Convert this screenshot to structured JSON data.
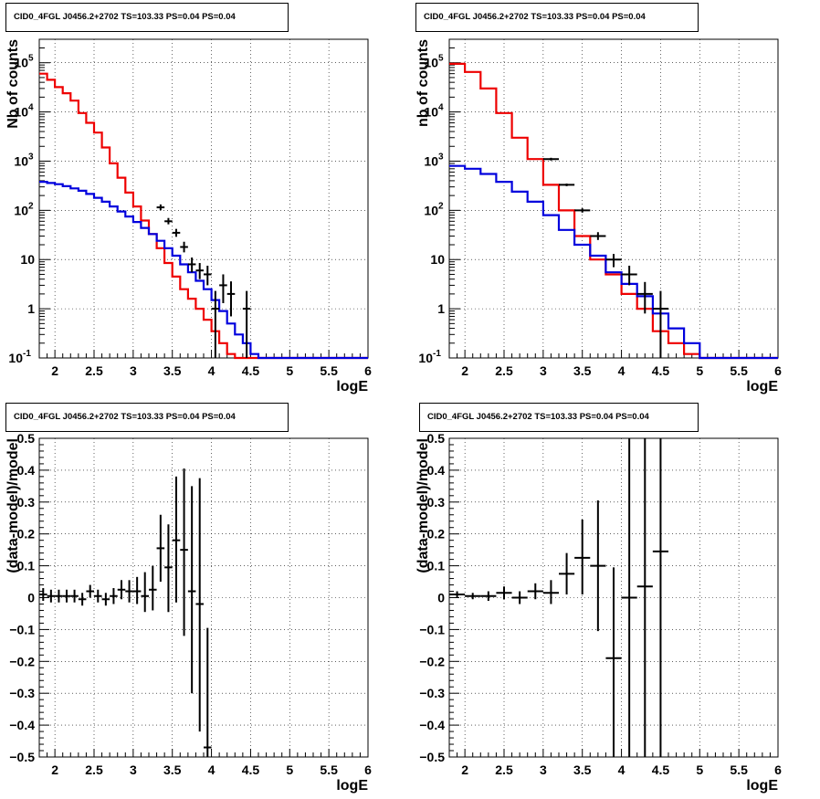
{
  "chart_data": [
    {
      "type": "line",
      "title": "CID0_4FGL J0456.2+2702 TS=103.33 PS=0.04 PS=0.04",
      "xlabel": "logE",
      "ylabel": "Nb of counts",
      "yscale": "log",
      "xlim": [
        1.8,
        6.0
      ],
      "ylim": [
        0.1,
        300000
      ],
      "x_ticks": [
        "2",
        "2.5",
        "3",
        "3.5",
        "4",
        "4.5",
        "5",
        "5.5",
        "6"
      ],
      "y_ticks": [
        "10^-1",
        "1",
        "10",
        "10^2",
        "10^3",
        "10^4",
        "10^5"
      ],
      "grid": true,
      "bin_edges": [
        1.8,
        1.9,
        2.0,
        2.1,
        2.2,
        2.3,
        2.4,
        2.5,
        2.6,
        2.7,
        2.8,
        2.9,
        3.0,
        3.1,
        3.2,
        3.3,
        3.4,
        3.5,
        3.6,
        3.7,
        3.8,
        3.9,
        4.0,
        4.1,
        4.2,
        4.3,
        4.4,
        4.5,
        4.6,
        4.7,
        4.8,
        4.9,
        5.0,
        5.1,
        5.2,
        5.3,
        5.4,
        5.5,
        5.6,
        5.7,
        5.8,
        5.9,
        6.0
      ],
      "series": [
        {
          "color": "#ee0000",
          "values": [
            60000,
            45000,
            32000,
            24000,
            17000,
            9500,
            6000,
            3800,
            1900,
            900,
            460,
            230,
            120,
            62,
            33,
            17,
            8.5,
            4.5,
            2.5,
            1.6,
            1.0,
            0.6,
            0.35,
            0.2,
            0.12,
            0.1,
            0.1,
            0.1,
            0.1,
            0.1,
            0.1,
            0.1,
            0.1,
            0.1,
            0.1,
            0.1,
            0.1,
            0.1,
            0.1,
            0.1,
            0.1,
            0.1
          ]
        },
        {
          "color": "#0000dd",
          "values": [
            380,
            360,
            340,
            310,
            280,
            250,
            215,
            180,
            150,
            120,
            95,
            75,
            58,
            44,
            33,
            24,
            17,
            12,
            8,
            5.5,
            3.7,
            2.5,
            1.5,
            0.9,
            0.5,
            0.3,
            0.2,
            0.12,
            0.1,
            0.1,
            0.1,
            0.1,
            0.1,
            0.1,
            0.1,
            0.1,
            0.1,
            0.1,
            0.1,
            0.1,
            0.1,
            0.1
          ]
        }
      ],
      "data_points": [
        {
          "x": 3.35,
          "y": 115,
          "xerr": 0.05,
          "ylow": 100,
          "yhigh": 132
        },
        {
          "x": 3.45,
          "y": 60,
          "xerr": 0.05,
          "ylow": 52,
          "yhigh": 70
        },
        {
          "x": 3.55,
          "y": 35,
          "xerr": 0.05,
          "ylow": 29,
          "yhigh": 42
        },
        {
          "x": 3.65,
          "y": 18,
          "xerr": 0.05,
          "ylow": 14,
          "yhigh": 23
        },
        {
          "x": 3.75,
          "y": 8,
          "xerr": 0.05,
          "ylow": 5.5,
          "yhigh": 11
        },
        {
          "x": 3.85,
          "y": 6,
          "xerr": 0.05,
          "ylow": 4,
          "yhigh": 8.5
        },
        {
          "x": 3.95,
          "y": 5,
          "xerr": 0.05,
          "ylow": 3,
          "yhigh": 7.5
        },
        {
          "x": 4.05,
          "y": 1,
          "xerr": 0.05,
          "ylow": 0.1,
          "yhigh": 2.3
        },
        {
          "x": 4.15,
          "y": 3,
          "xerr": 0.05,
          "ylow": 1.3,
          "yhigh": 5
        },
        {
          "x": 4.25,
          "y": 2,
          "xerr": 0.05,
          "ylow": 0.7,
          "yhigh": 3.6
        },
        {
          "x": 4.45,
          "y": 1,
          "xerr": 0.05,
          "ylow": 0.1,
          "yhigh": 2.3
        }
      ]
    },
    {
      "type": "line",
      "title": "CID0_4FGL J0456.2+2702 TS=103.33 PS=0.04 PS=0.04",
      "xlabel": "logE",
      "ylabel": "nb of counts",
      "yscale": "log",
      "xlim": [
        1.8,
        6.0
      ],
      "ylim": [
        0.1,
        300000
      ],
      "x_ticks": [
        "2",
        "2.5",
        "3",
        "3.5",
        "4",
        "4.5",
        "5",
        "5.5",
        "6"
      ],
      "y_ticks": [
        "10^-1",
        "1",
        "10",
        "10^2",
        "10^3",
        "10^4",
        "10^5"
      ],
      "grid": true,
      "bin_edges": [
        1.8,
        2.0,
        2.2,
        2.4,
        2.6,
        2.8,
        3.0,
        3.2,
        3.4,
        3.6,
        3.8,
        4.0,
        4.2,
        4.4,
        4.6,
        4.8,
        5.0,
        5.2,
        5.4,
        5.6,
        5.8,
        6.0
      ],
      "series": [
        {
          "color": "#ee0000",
          "values": [
            95000,
            65000,
            30000,
            9500,
            3000,
            1100,
            330,
            100,
            30,
            10,
            5,
            2,
            1,
            0.35,
            0.2,
            0.12,
            0.1,
            0.1,
            0.1,
            0.1,
            0.1
          ]
        },
        {
          "color": "#0000dd",
          "values": [
            800,
            700,
            550,
            380,
            240,
            150,
            80,
            40,
            20,
            12,
            5.5,
            3.2,
            1.8,
            0.8,
            0.4,
            0.2,
            0.1,
            0.1,
            0.1,
            0.1,
            0.1
          ]
        }
      ],
      "data_points": [
        {
          "x": 3.1,
          "y": 1100,
          "xerr": 0.1,
          "ylow": 1030,
          "yhigh": 1170
        },
        {
          "x": 3.3,
          "y": 330,
          "xerr": 0.1,
          "ylow": 310,
          "yhigh": 350
        },
        {
          "x": 3.5,
          "y": 100,
          "xerr": 0.1,
          "ylow": 90,
          "yhigh": 110
        },
        {
          "x": 3.7,
          "y": 30,
          "xerr": 0.1,
          "ylow": 25,
          "yhigh": 36
        },
        {
          "x": 3.9,
          "y": 10,
          "xerr": 0.1,
          "ylow": 7,
          "yhigh": 13
        },
        {
          "x": 4.1,
          "y": 5,
          "xerr": 0.1,
          "ylow": 3,
          "yhigh": 7.5
        },
        {
          "x": 4.3,
          "y": 2,
          "xerr": 0.1,
          "ylow": 0.8,
          "yhigh": 3.5
        },
        {
          "x": 4.5,
          "y": 1,
          "xerr": 0.1,
          "ylow": 0.1,
          "yhigh": 2.3
        }
      ]
    },
    {
      "type": "scatter",
      "title": "CID0_4FGL J0456.2+2702 TS=103.33 PS=0.04 PS=0.04",
      "xlabel": "logE",
      "ylabel": "(data-model)/model",
      "yscale": "linear",
      "xlim": [
        1.8,
        6.0
      ],
      "ylim": [
        -0.5,
        0.5
      ],
      "x_ticks": [
        "2",
        "2.5",
        "3",
        "3.5",
        "4",
        "4.5",
        "5",
        "5.5",
        "6"
      ],
      "y_ticks": [
        "−0.5",
        "−0.4",
        "−0.3",
        "−0.2",
        "−0.1",
        "0",
        "0.1",
        "0.2",
        "0.3",
        "0.4",
        "0.5"
      ],
      "grid": true,
      "data_points": [
        {
          "x": 1.85,
          "y": 0.01,
          "xerr": 0.05,
          "ylow": -0.01,
          "yhigh": 0.03
        },
        {
          "x": 1.95,
          "y": 0.005,
          "xerr": 0.05,
          "ylow": -0.015,
          "yhigh": 0.025
        },
        {
          "x": 2.05,
          "y": 0.005,
          "xerr": 0.05,
          "ylow": -0.015,
          "yhigh": 0.025
        },
        {
          "x": 2.15,
          "y": 0.005,
          "xerr": 0.05,
          "ylow": -0.015,
          "yhigh": 0.025
        },
        {
          "x": 2.25,
          "y": 0.005,
          "xerr": 0.05,
          "ylow": -0.015,
          "yhigh": 0.025
        },
        {
          "x": 2.35,
          "y": -0.005,
          "xerr": 0.05,
          "ylow": -0.025,
          "yhigh": 0.015
        },
        {
          "x": 2.45,
          "y": 0.02,
          "xerr": 0.05,
          "ylow": 0,
          "yhigh": 0.04
        },
        {
          "x": 2.55,
          "y": 0.005,
          "xerr": 0.05,
          "ylow": -0.015,
          "yhigh": 0.025
        },
        {
          "x": 2.65,
          "y": -0.005,
          "xerr": 0.05,
          "ylow": -0.025,
          "yhigh": 0.015
        },
        {
          "x": 2.75,
          "y": 0.005,
          "xerr": 0.05,
          "ylow": -0.02,
          "yhigh": 0.03
        },
        {
          "x": 2.85,
          "y": 0.025,
          "xerr": 0.05,
          "ylow": -0.005,
          "yhigh": 0.055
        },
        {
          "x": 2.95,
          "y": 0.02,
          "xerr": 0.05,
          "ylow": -0.015,
          "yhigh": 0.055
        },
        {
          "x": 3.05,
          "y": 0.02,
          "xerr": 0.05,
          "ylow": -0.02,
          "yhigh": 0.065
        },
        {
          "x": 3.15,
          "y": 0.005,
          "xerr": 0.05,
          "ylow": -0.045,
          "yhigh": 0.08
        },
        {
          "x": 3.25,
          "y": 0.025,
          "xerr": 0.05,
          "ylow": -0.04,
          "yhigh": 0.1
        },
        {
          "x": 3.35,
          "y": 0.155,
          "xerr": 0.05,
          "ylow": 0.05,
          "yhigh": 0.26
        },
        {
          "x": 3.45,
          "y": 0.095,
          "xerr": 0.05,
          "ylow": -0.045,
          "yhigh": 0.23
        },
        {
          "x": 3.55,
          "y": 0.18,
          "xerr": 0.05,
          "ylow": -0.015,
          "yhigh": 0.38
        },
        {
          "x": 3.65,
          "y": 0.15,
          "xerr": 0.05,
          "ylow": -0.12,
          "yhigh": 0.405
        },
        {
          "x": 3.75,
          "y": 0.02,
          "xerr": 0.05,
          "ylow": -0.3,
          "yhigh": 0.35
        },
        {
          "x": 3.85,
          "y": -0.02,
          "xerr": 0.05,
          "ylow": -0.42,
          "yhigh": 0.375
        },
        {
          "x": 3.95,
          "y": -0.47,
          "xerr": 0.05,
          "ylow": -0.5,
          "yhigh": -0.095
        }
      ]
    },
    {
      "type": "scatter",
      "title": "CID0_4FGL J0456.2+2702 TS=103.33 PS=0.04 PS=0.04",
      "xlabel": "logE",
      "ylabel": "(data-model)/model",
      "yscale": "linear",
      "xlim": [
        1.8,
        6.0
      ],
      "ylim": [
        -0.5,
        0.5
      ],
      "x_ticks": [
        "2",
        "2.5",
        "3",
        "3.5",
        "4",
        "4.5",
        "5",
        "5.5",
        "6"
      ],
      "y_ticks": [
        "−0.5",
        "−0.4",
        "−0.3",
        "−0.2",
        "−0.1",
        "0",
        "0.1",
        "0.2",
        "0.3",
        "0.4",
        "0.5"
      ],
      "grid": true,
      "data_points": [
        {
          "x": 1.9,
          "y": 0.01,
          "xerr": 0.1,
          "ylow": 0,
          "yhigh": 0.02
        },
        {
          "x": 2.1,
          "y": 0.005,
          "xerr": 0.1,
          "ylow": -0.005,
          "yhigh": 0.015
        },
        {
          "x": 2.3,
          "y": 0.005,
          "xerr": 0.1,
          "ylow": -0.01,
          "yhigh": 0.02
        },
        {
          "x": 2.5,
          "y": 0.015,
          "xerr": 0.1,
          "ylow": -0.005,
          "yhigh": 0.035
        },
        {
          "x": 2.7,
          "y": 0,
          "xerr": 0.1,
          "ylow": -0.02,
          "yhigh": 0.02
        },
        {
          "x": 2.9,
          "y": 0.02,
          "xerr": 0.1,
          "ylow": -0.005,
          "yhigh": 0.045
        },
        {
          "x": 3.1,
          "y": 0.015,
          "xerr": 0.1,
          "ylow": -0.02,
          "yhigh": 0.055
        },
        {
          "x": 3.3,
          "y": 0.075,
          "xerr": 0.1,
          "ylow": 0.01,
          "yhigh": 0.14
        },
        {
          "x": 3.5,
          "y": 0.125,
          "xerr": 0.1,
          "ylow": 0.01,
          "yhigh": 0.245
        },
        {
          "x": 3.7,
          "y": 0.1,
          "xerr": 0.1,
          "ylow": -0.105,
          "yhigh": 0.305
        },
        {
          "x": 3.9,
          "y": -0.19,
          "xerr": 0.1,
          "ylow": -0.5,
          "yhigh": 0.095
        },
        {
          "x": 4.1,
          "y": 0,
          "xerr": 0.1,
          "ylow": -0.5,
          "yhigh": 0.5
        },
        {
          "x": 4.3,
          "y": 0.035,
          "xerr": 0.1,
          "ylow": -0.5,
          "yhigh": 0.5
        },
        {
          "x": 4.5,
          "y": 0.145,
          "xerr": 0.1,
          "ylow": -0.5,
          "yhigh": 0.5
        }
      ]
    }
  ]
}
